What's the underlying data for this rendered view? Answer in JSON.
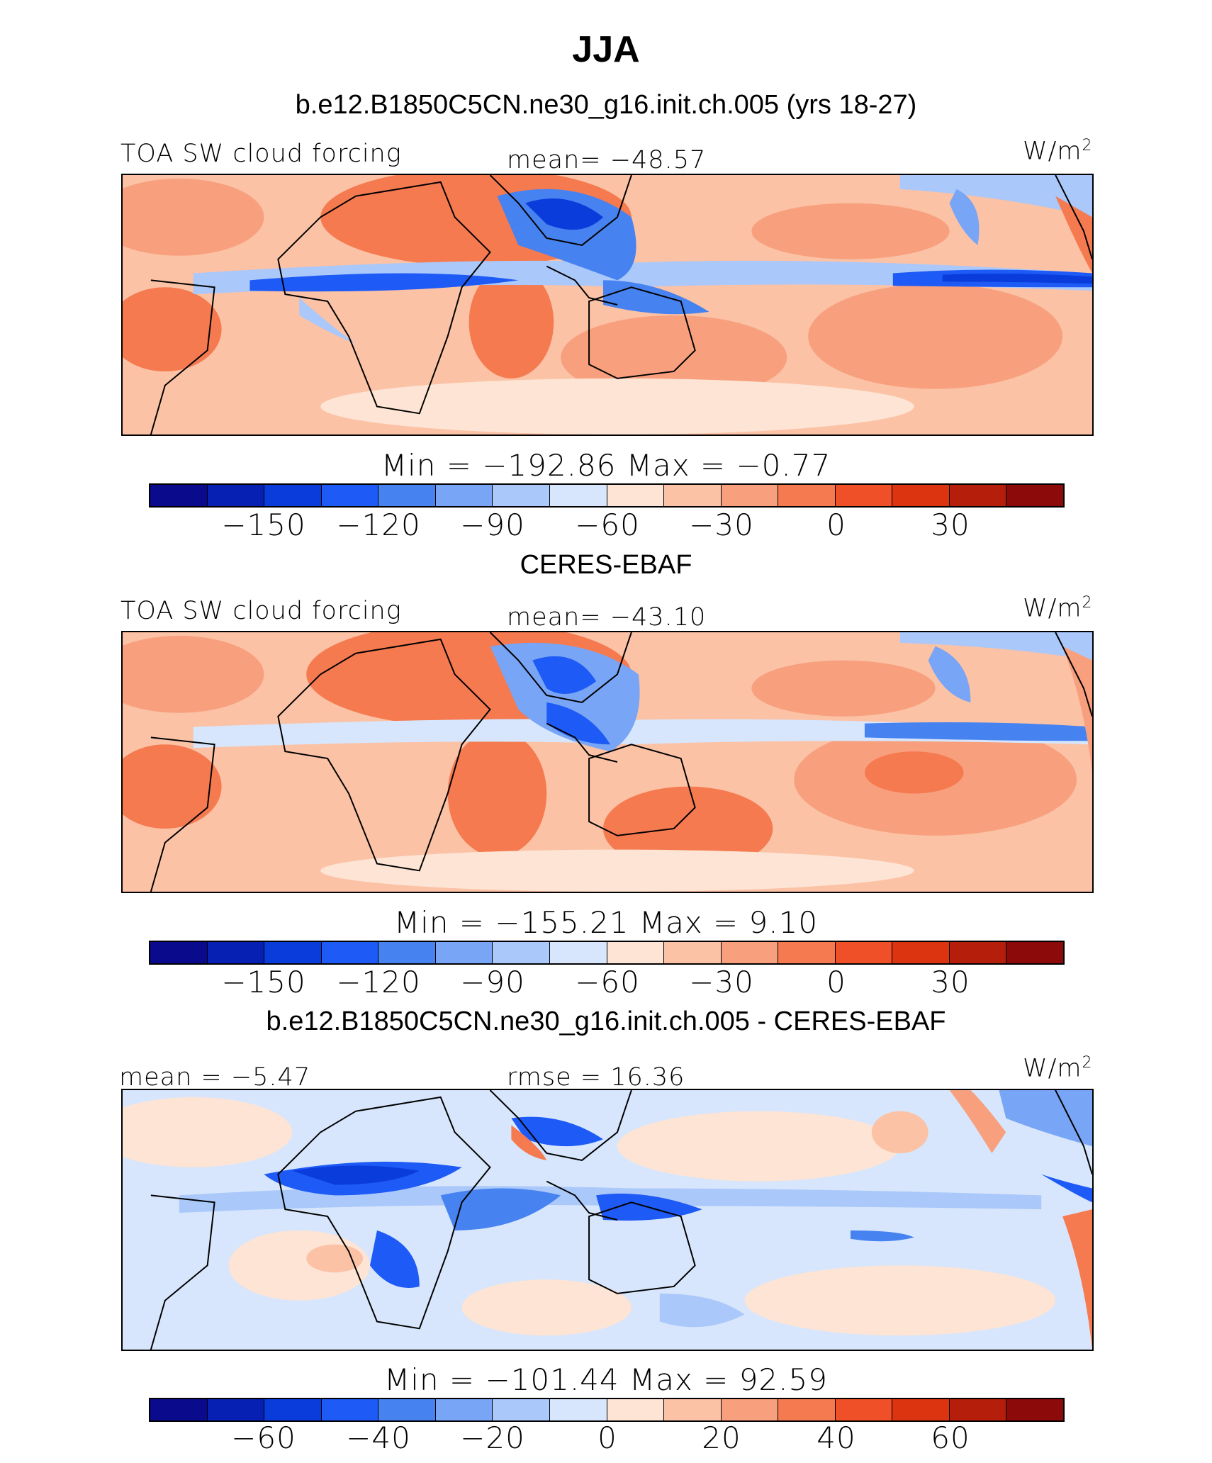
{
  "title": "JJA",
  "palette": [
    "#0a0a8c",
    "#0620b4",
    "#0a3cdc",
    "#1e5af5",
    "#4682f0",
    "#78a5f5",
    "#aac8fa",
    "#d7e6fc",
    "#fde4d4",
    "#fbc2a6",
    "#f8a07e",
    "#f57a50",
    "#f05028",
    "#dc3410",
    "#b41e0a",
    "#8c0a0a"
  ],
  "panels": [
    {
      "header": "b.e12.B1850C5CN.ne30_g16.init.ch.005 (yrs 18-27)",
      "left": "TOA SW cloud forcing",
      "center": "mean= −48.57",
      "unit": "W/m",
      "unit_sup": "2",
      "minmax": "Min  =  −192.86  Max  =    −0.77",
      "ticks": [
        "−150",
        "−120",
        "−90",
        "−60",
        "−30",
        "0",
        "30"
      ]
    },
    {
      "header": "CERES-EBAF",
      "left": "TOA SW cloud forcing",
      "center": "mean= −43.10",
      "unit": "W/m",
      "unit_sup": "2",
      "minmax": "Min  =  −155.21  Max  =     9.10",
      "ticks": [
        "−150",
        "−120",
        "−90",
        "−60",
        "−30",
        "0",
        "30"
      ]
    },
    {
      "header": "b.e12.B1850C5CN.ne30_g16.init.ch.005 - CERES-EBAF",
      "left": "mean  =    −5.47",
      "center": "rmse  =    16.36",
      "unit": "W/m",
      "unit_sup": "2",
      "minmax": "Min  =  −101.44  Max  =    92.59",
      "ticks": [
        "−60",
        "−40",
        "−20",
        "0",
        "20",
        "40",
        "60"
      ]
    }
  ]
}
